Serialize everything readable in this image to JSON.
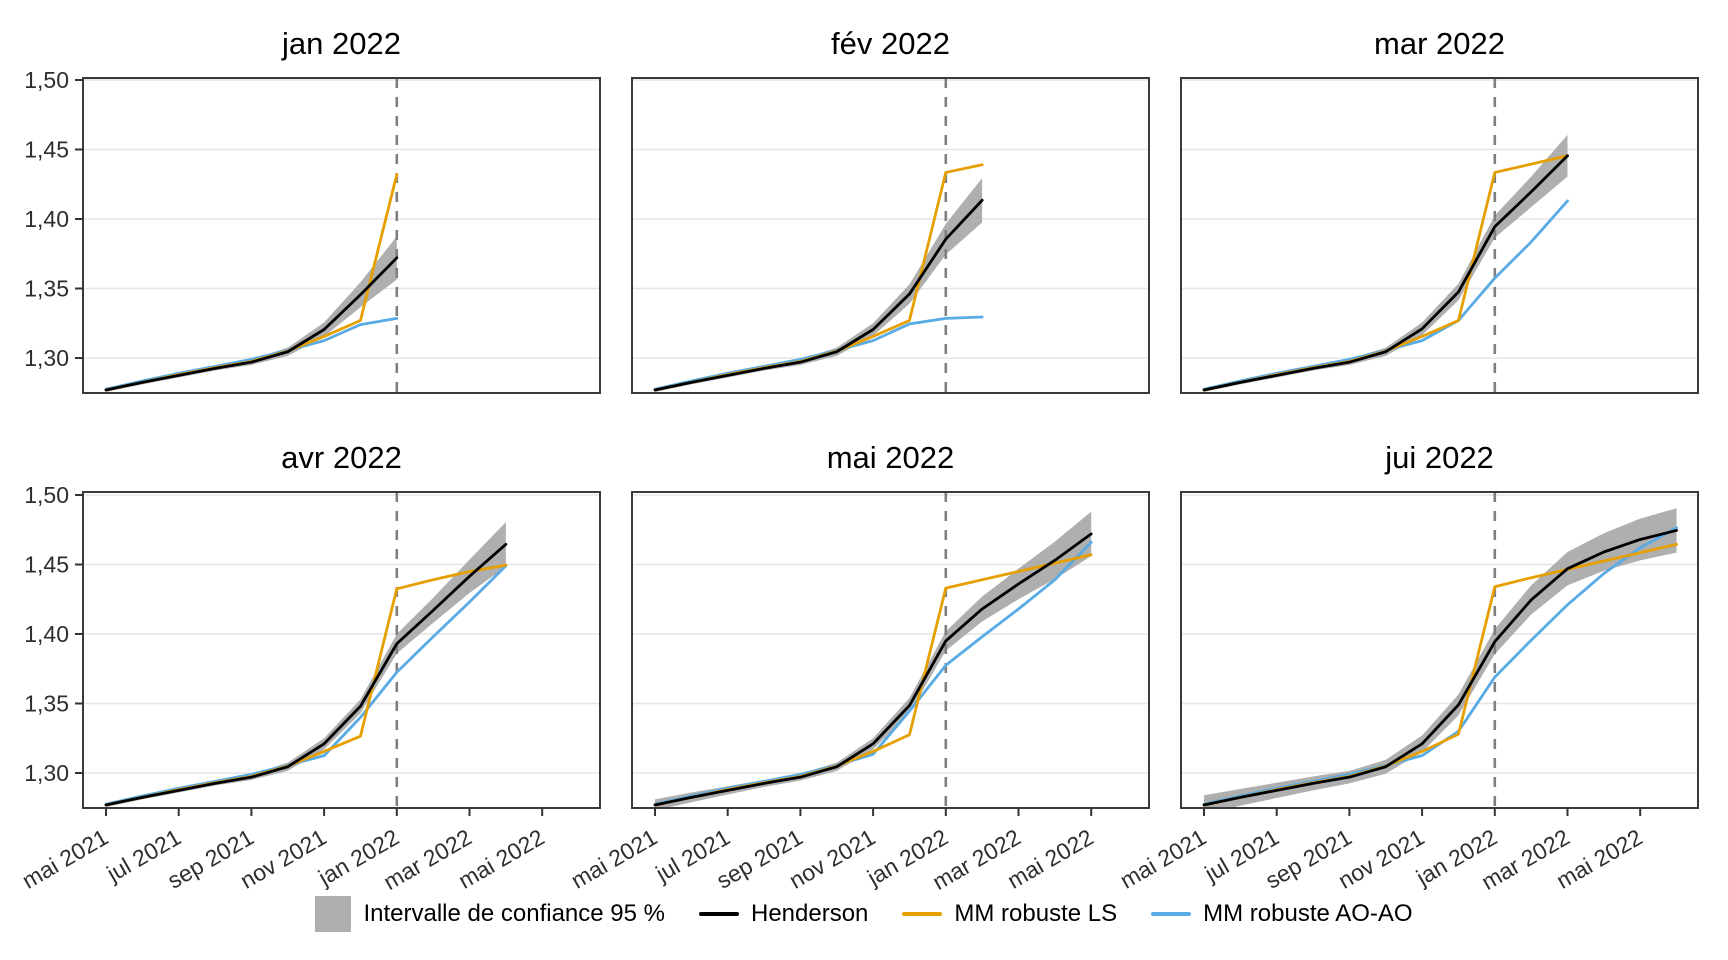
{
  "chart_data": {
    "type": "line",
    "title": "",
    "y_axis": {
      "ticks": [
        1.3,
        1.35,
        1.4,
        1.45,
        1.5
      ],
      "tick_labels": [
        "1,30",
        "1,35",
        "1,40",
        "1,45",
        "1,50"
      ],
      "range": [
        1.2745,
        1.502
      ],
      "grid": "horizontal-only"
    },
    "x_axis": {
      "n_months_total": 14,
      "first_month": "mai 2021",
      "tick_month_indices": [
        0,
        2,
        4,
        6,
        8,
        10,
        12
      ],
      "tick_labels": [
        "mai 2021",
        "jul 2021",
        "sep 2021",
        "nov 2021",
        "jan 2022",
        "mar 2022",
        "mai 2022"
      ],
      "label_rotation_deg": -30
    },
    "event_line": {
      "month_index": 8,
      "month": "jan 2022",
      "style": "dashed",
      "color": "#7f7f7f"
    },
    "legend_position": "bottom-center",
    "legend": [
      {
        "label": "Intervalle de confiance 95 %",
        "type": "fill",
        "color": "#AFAFAF"
      },
      {
        "label": "Henderson",
        "type": "line",
        "color": "#000000"
      },
      {
        "label": "MM robuste LS",
        "type": "line",
        "color": "#E69F00"
      },
      {
        "label": "MM robuste AO-AO",
        "type": "line",
        "color": "#58ABE4"
      }
    ],
    "facets": [
      {
        "title": "jan 2022",
        "henderson": [
          1.277,
          1.2825,
          1.2875,
          1.2925,
          1.297,
          1.3045,
          1.3205,
          1.3455,
          1.372
        ],
        "mm_robuste_ls": [
          1.277,
          1.2825,
          1.288,
          1.293,
          1.2975,
          1.305,
          1.3155,
          1.327,
          1.432
        ],
        "mm_robuste_ao": [
          1.2775,
          1.2835,
          1.289,
          1.294,
          1.299,
          1.3055,
          1.3125,
          1.324,
          1.3285
        ],
        "ci_upper": [
          1.2785,
          1.284,
          1.289,
          1.294,
          1.299,
          1.3075,
          1.3255,
          1.3545,
          1.3875
        ],
        "ci_lower": [
          1.2755,
          1.281,
          1.286,
          1.291,
          1.295,
          1.3015,
          1.3155,
          1.3365,
          1.3565
        ]
      },
      {
        "title": "fév 2022",
        "henderson": [
          1.277,
          1.2825,
          1.2875,
          1.2925,
          1.297,
          1.3045,
          1.3205,
          1.346,
          1.3855,
          1.4135
        ],
        "mm_robuste_ls": [
          1.277,
          1.2825,
          1.288,
          1.293,
          1.2975,
          1.305,
          1.3155,
          1.327,
          1.4335,
          1.439
        ],
        "mm_robuste_ao": [
          1.2775,
          1.2835,
          1.289,
          1.294,
          1.299,
          1.3055,
          1.3125,
          1.3245,
          1.3285,
          1.3295
        ],
        "ci_upper": [
          1.2785,
          1.284,
          1.289,
          1.294,
          1.299,
          1.3075,
          1.325,
          1.353,
          1.3965,
          1.4295
        ],
        "ci_lower": [
          1.2755,
          1.281,
          1.286,
          1.291,
          1.295,
          1.3015,
          1.316,
          1.339,
          1.3745,
          1.3975
        ]
      },
      {
        "title": "mar 2022",
        "henderson": [
          1.277,
          1.2825,
          1.2875,
          1.2925,
          1.297,
          1.3045,
          1.321,
          1.3475,
          1.3945,
          1.4195,
          1.4455
        ],
        "mm_robuste_ls": [
          1.277,
          1.2825,
          1.288,
          1.293,
          1.2975,
          1.305,
          1.3155,
          1.327,
          1.4335,
          1.4395,
          1.4455
        ],
        "mm_robuste_ao": [
          1.2775,
          1.2835,
          1.289,
          1.294,
          1.299,
          1.3055,
          1.3125,
          1.327,
          1.3575,
          1.3835,
          1.413
        ],
        "ci_upper": [
          1.2785,
          1.284,
          1.289,
          1.294,
          1.299,
          1.3075,
          1.3255,
          1.3535,
          1.4025,
          1.4305,
          1.4605
        ],
        "ci_lower": [
          1.2755,
          1.281,
          1.286,
          1.291,
          1.295,
          1.3015,
          1.3165,
          1.3415,
          1.3865,
          1.4085,
          1.4305
        ]
      },
      {
        "title": "avr 2022",
        "henderson": [
          1.277,
          1.2825,
          1.2875,
          1.2925,
          1.297,
          1.3045,
          1.321,
          1.348,
          1.393,
          1.417,
          1.4415,
          1.4645
        ],
        "mm_robuste_ls": [
          1.277,
          1.2825,
          1.288,
          1.293,
          1.2975,
          1.305,
          1.3155,
          1.3265,
          1.4325,
          1.439,
          1.445,
          1.4495
        ],
        "mm_robuste_ao": [
          1.2775,
          1.2835,
          1.289,
          1.294,
          1.299,
          1.3055,
          1.3125,
          1.34,
          1.3725,
          1.398,
          1.423,
          1.449
        ],
        "ci_upper": [
          1.2785,
          1.284,
          1.289,
          1.294,
          1.299,
          1.3075,
          1.325,
          1.353,
          1.4,
          1.426,
          1.4535,
          1.4805
        ],
        "ci_lower": [
          1.2755,
          1.281,
          1.286,
          1.291,
          1.295,
          1.3015,
          1.317,
          1.343,
          1.386,
          1.408,
          1.4295,
          1.4485
        ]
      },
      {
        "title": "mai 2022",
        "henderson": [
          1.277,
          1.2825,
          1.2875,
          1.2925,
          1.297,
          1.3045,
          1.321,
          1.3485,
          1.395,
          1.418,
          1.436,
          1.453,
          1.472
        ],
        "mm_robuste_ls": [
          1.277,
          1.2825,
          1.288,
          1.293,
          1.2975,
          1.305,
          1.3155,
          1.3275,
          1.433,
          1.439,
          1.445,
          1.451,
          1.457
        ],
        "mm_robuste_ao": [
          1.2775,
          1.2835,
          1.289,
          1.294,
          1.299,
          1.3055,
          1.3135,
          1.3445,
          1.3775,
          1.398,
          1.418,
          1.439,
          1.466
        ],
        "ci_upper": [
          1.281,
          1.286,
          1.2905,
          1.295,
          1.2995,
          1.3075,
          1.325,
          1.354,
          1.402,
          1.427,
          1.447,
          1.4665,
          1.488
        ],
        "ci_lower": [
          1.273,
          1.279,
          1.2845,
          1.29,
          1.2945,
          1.3015,
          1.317,
          1.343,
          1.388,
          1.409,
          1.425,
          1.4395,
          1.456
        ]
      },
      {
        "title": "jui 2022",
        "henderson": [
          1.277,
          1.2825,
          1.2875,
          1.2925,
          1.297,
          1.3045,
          1.321,
          1.349,
          1.3945,
          1.4245,
          1.447,
          1.459,
          1.468,
          1.4745
        ],
        "mm_robuste_ls": [
          1.277,
          1.2825,
          1.288,
          1.293,
          1.2975,
          1.305,
          1.3155,
          1.328,
          1.434,
          1.4405,
          1.4465,
          1.4525,
          1.4585,
          1.4645
        ],
        "mm_robuste_ao": [
          1.2775,
          1.2835,
          1.289,
          1.294,
          1.299,
          1.3055,
          1.3125,
          1.33,
          1.369,
          1.3955,
          1.421,
          1.4435,
          1.462,
          1.4765
        ],
        "ci_upper": [
          1.284,
          1.2885,
          1.293,
          1.2975,
          1.3015,
          1.3095,
          1.327,
          1.3565,
          1.4035,
          1.435,
          1.459,
          1.4725,
          1.483,
          1.4905
        ],
        "ci_lower": [
          1.27,
          1.2765,
          1.282,
          1.2875,
          1.2925,
          1.2995,
          1.315,
          1.3415,
          1.3855,
          1.414,
          1.435,
          1.4455,
          1.453,
          1.4585
        ]
      }
    ]
  },
  "style_colors": {
    "ci_band": "#AFAFAF",
    "henderson": "#000000",
    "mm_ls": "#E69F00",
    "mm_ao": "#58ABE4",
    "event_dash": "#7f7f7f",
    "grid": "#e6e6e6",
    "panel_border": "#3a3a3a",
    "axis_text": "#2e2e2e"
  }
}
